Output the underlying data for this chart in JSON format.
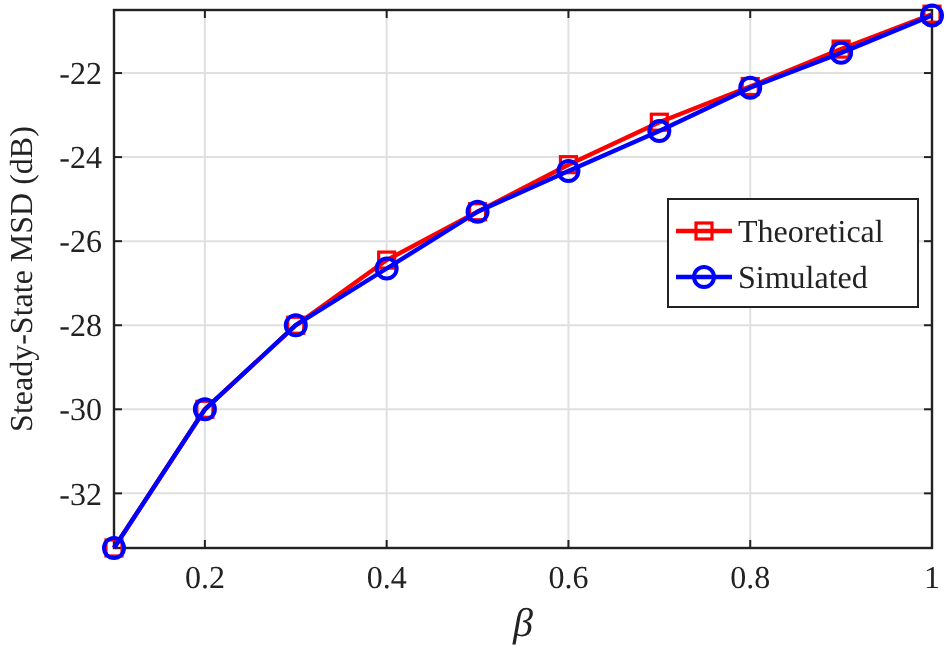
{
  "chart_data": {
    "type": "line",
    "xlabel": "β",
    "ylabel": "Steady-State MSD (dB)",
    "x": [
      0.1,
      0.2,
      0.3,
      0.4,
      0.5,
      0.6,
      0.7,
      0.8,
      0.9,
      1
    ],
    "series": [
      {
        "name": "Theoretical",
        "color": "#ff0000",
        "marker": "square",
        "values": [
          -33.3,
          -30.0,
          -28.0,
          -26.45,
          -25.3,
          -24.18,
          -23.17,
          -22.32,
          -21.43,
          -20.6
        ]
      },
      {
        "name": "Simulated",
        "color": "#0000ff",
        "marker": "circle",
        "values": [
          -33.3,
          -30.0,
          -28.0,
          -26.65,
          -25.3,
          -24.33,
          -23.38,
          -22.35,
          -21.52,
          -20.63
        ]
      }
    ],
    "xlim": [
      0.1,
      1
    ],
    "xticks": [
      0.2,
      0.4,
      0.6,
      0.8,
      1
    ],
    "ylim": [
      -33.3,
      -20.5
    ],
    "yticks": [
      -32,
      -30,
      -28,
      -26,
      -24,
      -22
    ],
    "grid": true,
    "legend": "right",
    "line_style": "solid"
  }
}
